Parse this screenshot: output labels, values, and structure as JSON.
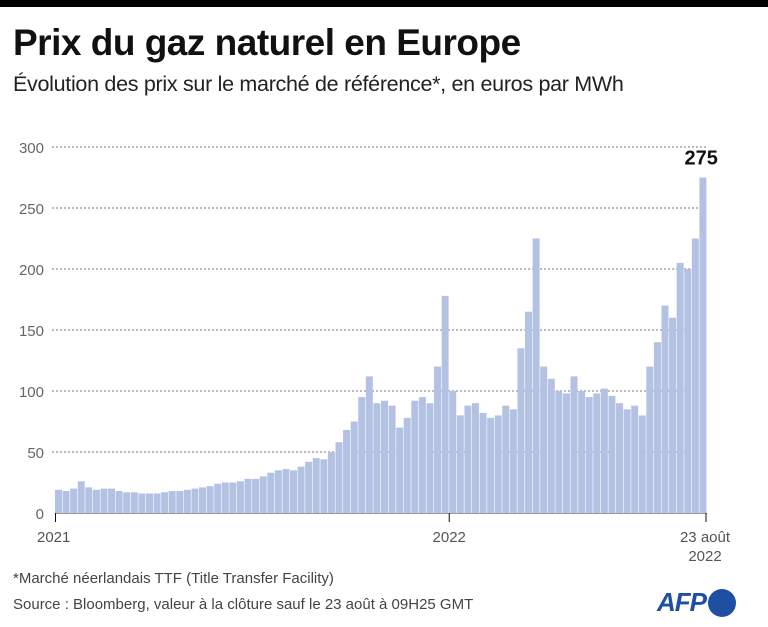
{
  "header": {
    "title": "Prix du gaz naturel en Europe",
    "subtitle": "Évolution des prix sur le marché de référence*, en euros par MWh"
  },
  "footer": {
    "footnote": "*Marché néerlandais TTF (Title Transfer Facility)",
    "source": "Source : Bloomberg, valeur à la clôture sauf le 23 août à 09H25 GMT",
    "logo_text": "AFP"
  },
  "colors": {
    "bar": "#b3c1e3",
    "logo": "#1e4fa3",
    "grid": "#777777",
    "topbar": "#000000"
  },
  "chart_data": {
    "type": "bar",
    "title": "Prix du gaz naturel en Europe",
    "subtitle": "Évolution des prix sur le marché de référence*, en euros par MWh",
    "xlabel": "",
    "ylabel": "euros par MWh",
    "ylim": [
      0,
      300
    ],
    "yticks": [
      0,
      50,
      100,
      150,
      200,
      250,
      300
    ],
    "ytick_labels": [
      "0",
      "50",
      "100",
      "150",
      "200",
      "250",
      "300"
    ],
    "xticks": [
      {
        "label": "2021",
        "label2": "",
        "week": 0
      },
      {
        "label": "2022",
        "label2": "",
        "week": 52
      },
      {
        "label": "23 août",
        "label2": "2022",
        "week": 86
      }
    ],
    "grid": true,
    "grid_style": "dotted horizontal",
    "legend": "none",
    "annotation": {
      "text": "275",
      "value": 275,
      "position": "last-bar-top"
    },
    "x_unit": "week since 1 Jan 2021",
    "values": [
      19,
      18,
      20,
      26,
      21,
      19,
      20,
      20,
      18,
      17,
      17,
      16,
      16,
      16,
      17,
      18,
      18,
      19,
      20,
      21,
      22,
      24,
      25,
      25,
      26,
      28,
      28,
      30,
      33,
      35,
      36,
      35,
      38,
      42,
      45,
      44,
      50,
      58,
      68,
      75,
      95,
      112,
      90,
      92,
      88,
      70,
      78,
      92,
      95,
      90,
      120,
      178,
      100,
      80,
      88,
      90,
      82,
      78,
      80,
      88,
      85,
      135,
      165,
      225,
      120,
      110,
      100,
      98,
      112,
      100,
      95,
      98,
      102,
      96,
      90,
      85,
      88,
      80,
      120,
      140,
      170,
      160,
      205,
      200,
      225,
      275
    ]
  }
}
